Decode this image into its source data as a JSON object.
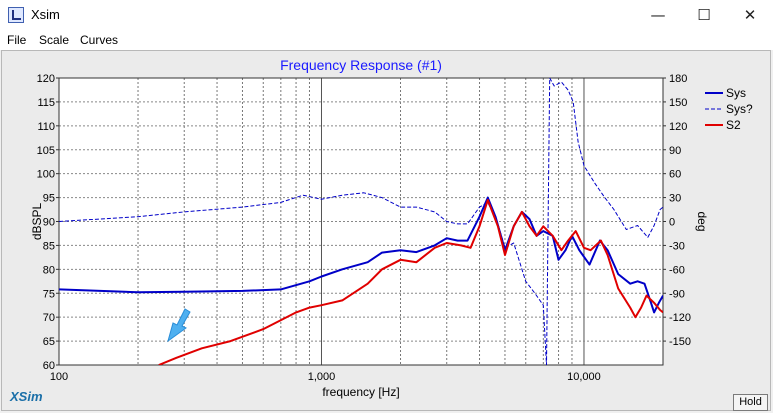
{
  "window": {
    "title": "Xsim",
    "minimize_glyph": "—",
    "maximize_glyph": "☐",
    "close_glyph": "✕"
  },
  "menu": {
    "items": [
      "File",
      "Scale",
      "Curves"
    ]
  },
  "watermark": "XSim",
  "hold_label": "Hold",
  "colors": {
    "blue": "#0000c8",
    "red": "#e00000",
    "title": "#1a1aff",
    "arrow": "#4fb0f0"
  },
  "icons": {
    "app": "xsim-app-icon",
    "arrow": "pointer-arrow-icon"
  },
  "chart_data": {
    "type": "line",
    "title": "Frequency Response (#1)",
    "xlabel": "frequency [Hz]",
    "ylabel": "dBSPL",
    "y2label": "deg",
    "xscale": "log",
    "xlim": [
      100,
      20000
    ],
    "ylim": [
      60,
      120
    ],
    "y2lim": [
      -180,
      180
    ],
    "grid": true,
    "legend_position": "top-right",
    "x_ticks": [
      100,
      1000,
      10000
    ],
    "x_tick_labels": [
      "100",
      "1,000",
      "10,000"
    ],
    "y_ticks": [
      60,
      65,
      70,
      75,
      80,
      85,
      90,
      95,
      100,
      105,
      110,
      115,
      120
    ],
    "y_tick_labels": [
      "60",
      "65",
      "70",
      "75",
      "80",
      "85",
      "90",
      "95",
      "100",
      "105",
      "110",
      "115",
      "120"
    ],
    "y2_ticks": [
      -150,
      -120,
      -90,
      -60,
      -30,
      0,
      30,
      60,
      90,
      120,
      150,
      180
    ],
    "y2_tick_labels": [
      "-150",
      "-120",
      "-90",
      "-60",
      "-30",
      "0",
      "30",
      "60",
      "90",
      "120",
      "150",
      "180"
    ],
    "series": [
      {
        "name": "Sys",
        "axis": "left",
        "color": "#0000c8",
        "style": "solid",
        "points": [
          [
            100,
            75.8
          ],
          [
            200,
            75.2
          ],
          [
            300,
            75.3
          ],
          [
            500,
            75.5
          ],
          [
            700,
            75.8
          ],
          [
            900,
            77.5
          ],
          [
            1000,
            78.5
          ],
          [
            1200,
            80
          ],
          [
            1500,
            81.5
          ],
          [
            1700,
            83.5
          ],
          [
            2000,
            84
          ],
          [
            2300,
            83.6
          ],
          [
            2700,
            85
          ],
          [
            3000,
            86.5
          ],
          [
            3300,
            86
          ],
          [
            3600,
            86
          ],
          [
            4000,
            91
          ],
          [
            4300,
            95
          ],
          [
            4600,
            91
          ],
          [
            5000,
            84
          ],
          [
            5400,
            89
          ],
          [
            5800,
            92
          ],
          [
            6200,
            90.5
          ],
          [
            6600,
            87
          ],
          [
            7000,
            88
          ],
          [
            7600,
            87
          ],
          [
            8000,
            82
          ],
          [
            8500,
            84
          ],
          [
            9000,
            87
          ],
          [
            9600,
            84
          ],
          [
            10500,
            81
          ],
          [
            11500,
            86
          ],
          [
            12300,
            84
          ],
          [
            13500,
            79
          ],
          [
            15000,
            77
          ],
          [
            16000,
            77.5
          ],
          [
            17000,
            77
          ],
          [
            18000,
            73
          ],
          [
            18500,
            71
          ],
          [
            19300,
            73
          ],
          [
            20000,
            74.5
          ]
        ]
      },
      {
        "name": "Sys?",
        "axis": "right",
        "color": "#0000c8",
        "style": "dashed",
        "points": [
          [
            100,
            0
          ],
          [
            200,
            6
          ],
          [
            300,
            12
          ],
          [
            500,
            18
          ],
          [
            700,
            24
          ],
          [
            850,
            33
          ],
          [
            1000,
            28
          ],
          [
            1200,
            33
          ],
          [
            1450,
            36
          ],
          [
            1700,
            30
          ],
          [
            2000,
            18
          ],
          [
            2300,
            18
          ],
          [
            2700,
            12
          ],
          [
            3000,
            0
          ],
          [
            3300,
            -3
          ],
          [
            3600,
            -3
          ],
          [
            4000,
            18
          ],
          [
            4300,
            24
          ],
          [
            4700,
            -3
          ],
          [
            5000,
            -33
          ],
          [
            5400,
            -27
          ],
          [
            6000,
            -75
          ],
          [
            6500,
            -90
          ],
          [
            7000,
            -105
          ],
          [
            7200,
            -180
          ],
          [
            7400,
            180
          ],
          [
            7700,
            170
          ],
          [
            8200,
            175
          ],
          [
            8700,
            165
          ],
          [
            9100,
            150
          ],
          [
            9500,
            100
          ],
          [
            10000,
            70
          ],
          [
            11000,
            48
          ],
          [
            12000,
            30
          ],
          [
            13000,
            15
          ],
          [
            14500,
            -10
          ],
          [
            16000,
            -5
          ],
          [
            17500,
            -20
          ],
          [
            18500,
            -5
          ],
          [
            19500,
            15
          ],
          [
            20000,
            18
          ]
        ]
      },
      {
        "name": "S2",
        "axis": "left",
        "color": "#e00000",
        "style": "solid",
        "points": [
          [
            240,
            60
          ],
          [
            280,
            61.5
          ],
          [
            350,
            63.5
          ],
          [
            450,
            65
          ],
          [
            600,
            67.5
          ],
          [
            800,
            71
          ],
          [
            900,
            72
          ],
          [
            1000,
            72.5
          ],
          [
            1200,
            73.5
          ],
          [
            1500,
            77
          ],
          [
            1700,
            80
          ],
          [
            2000,
            82
          ],
          [
            2300,
            81.5
          ],
          [
            2700,
            84.5
          ],
          [
            3000,
            85.5
          ],
          [
            3400,
            85
          ],
          [
            3700,
            84.5
          ],
          [
            4000,
            89
          ],
          [
            4300,
            94.5
          ],
          [
            4700,
            89
          ],
          [
            5000,
            83
          ],
          [
            5400,
            89
          ],
          [
            5800,
            92
          ],
          [
            6200,
            89
          ],
          [
            6600,
            87
          ],
          [
            7000,
            89
          ],
          [
            7600,
            87
          ],
          [
            8200,
            84
          ],
          [
            8700,
            86
          ],
          [
            9300,
            88
          ],
          [
            10000,
            84.5
          ],
          [
            10600,
            84
          ],
          [
            11600,
            86
          ],
          [
            12300,
            83
          ],
          [
            13500,
            76
          ],
          [
            15000,
            72
          ],
          [
            15700,
            70
          ],
          [
            16500,
            72
          ],
          [
            17300,
            74.5
          ],
          [
            18500,
            73
          ],
          [
            19500,
            71.5
          ],
          [
            20000,
            71
          ]
        ]
      }
    ]
  }
}
